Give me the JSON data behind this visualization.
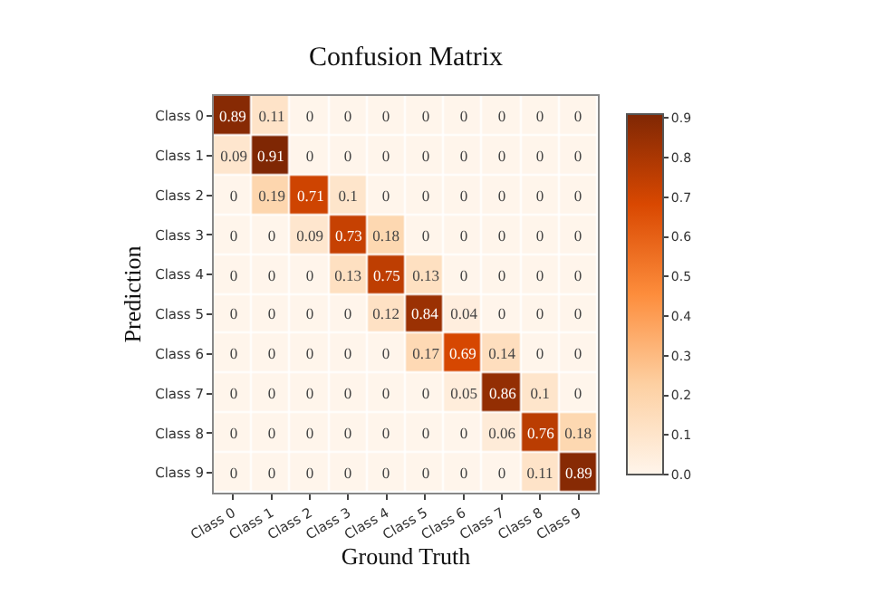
{
  "chart_data": {
    "type": "heatmap",
    "title": "Confusion Matrix",
    "xlabel": "Ground Truth",
    "ylabel": "Prediction",
    "categories": [
      "Class 0",
      "Class 1",
      "Class 2",
      "Class 3",
      "Class 4",
      "Class 5",
      "Class 6",
      "Class 7",
      "Class 8",
      "Class 9"
    ],
    "y_categories": [
      "Class 0",
      "Class 1",
      "Class 2",
      "Class 3",
      "Class 4",
      "Class 5",
      "Class 6",
      "Class 7",
      "Class 8",
      "Class 9"
    ],
    "cells": [
      [
        0.89,
        0.11,
        0,
        0,
        0,
        0,
        0,
        0,
        0,
        0
      ],
      [
        0.09,
        0.91,
        0,
        0,
        0,
        0,
        0,
        0,
        0,
        0
      ],
      [
        0,
        0.19,
        0.71,
        0.1,
        0,
        0,
        0,
        0,
        0,
        0
      ],
      [
        0,
        0,
        0.09,
        0.73,
        0.18,
        0,
        0,
        0,
        0,
        0
      ],
      [
        0,
        0,
        0,
        0.13,
        0.75,
        0.13,
        0,
        0,
        0,
        0
      ],
      [
        0,
        0,
        0,
        0,
        0.12,
        0.84,
        0.04,
        0,
        0,
        0
      ],
      [
        0,
        0,
        0,
        0,
        0,
        0.17,
        0.69,
        0.14,
        0,
        0
      ],
      [
        0,
        0,
        0,
        0,
        0,
        0,
        0.05,
        0.86,
        0.1,
        0
      ],
      [
        0,
        0,
        0,
        0,
        0,
        0,
        0,
        0.06,
        0.76,
        0.18
      ],
      [
        0,
        0,
        0,
        0,
        0,
        0,
        0,
        0,
        0.11,
        0.89
      ]
    ],
    "data_labels": true,
    "clim": [
      0,
      0.91
    ],
    "cticks": [
      {
        "value": 0,
        "label": "0.0"
      },
      {
        "value": 0.1,
        "label": "0.1"
      },
      {
        "value": 0.2,
        "label": "0.2"
      },
      {
        "value": 0.3,
        "label": "0.3"
      },
      {
        "value": 0.4,
        "label": "0.4"
      },
      {
        "value": 0.5,
        "label": "0.5"
      },
      {
        "value": 0.6,
        "label": "0.6"
      },
      {
        "value": 0.7,
        "label": "0.7"
      },
      {
        "value": 0.8,
        "label": "0.8"
      },
      {
        "value": 0.9,
        "label": "0.9"
      }
    ]
  }
}
